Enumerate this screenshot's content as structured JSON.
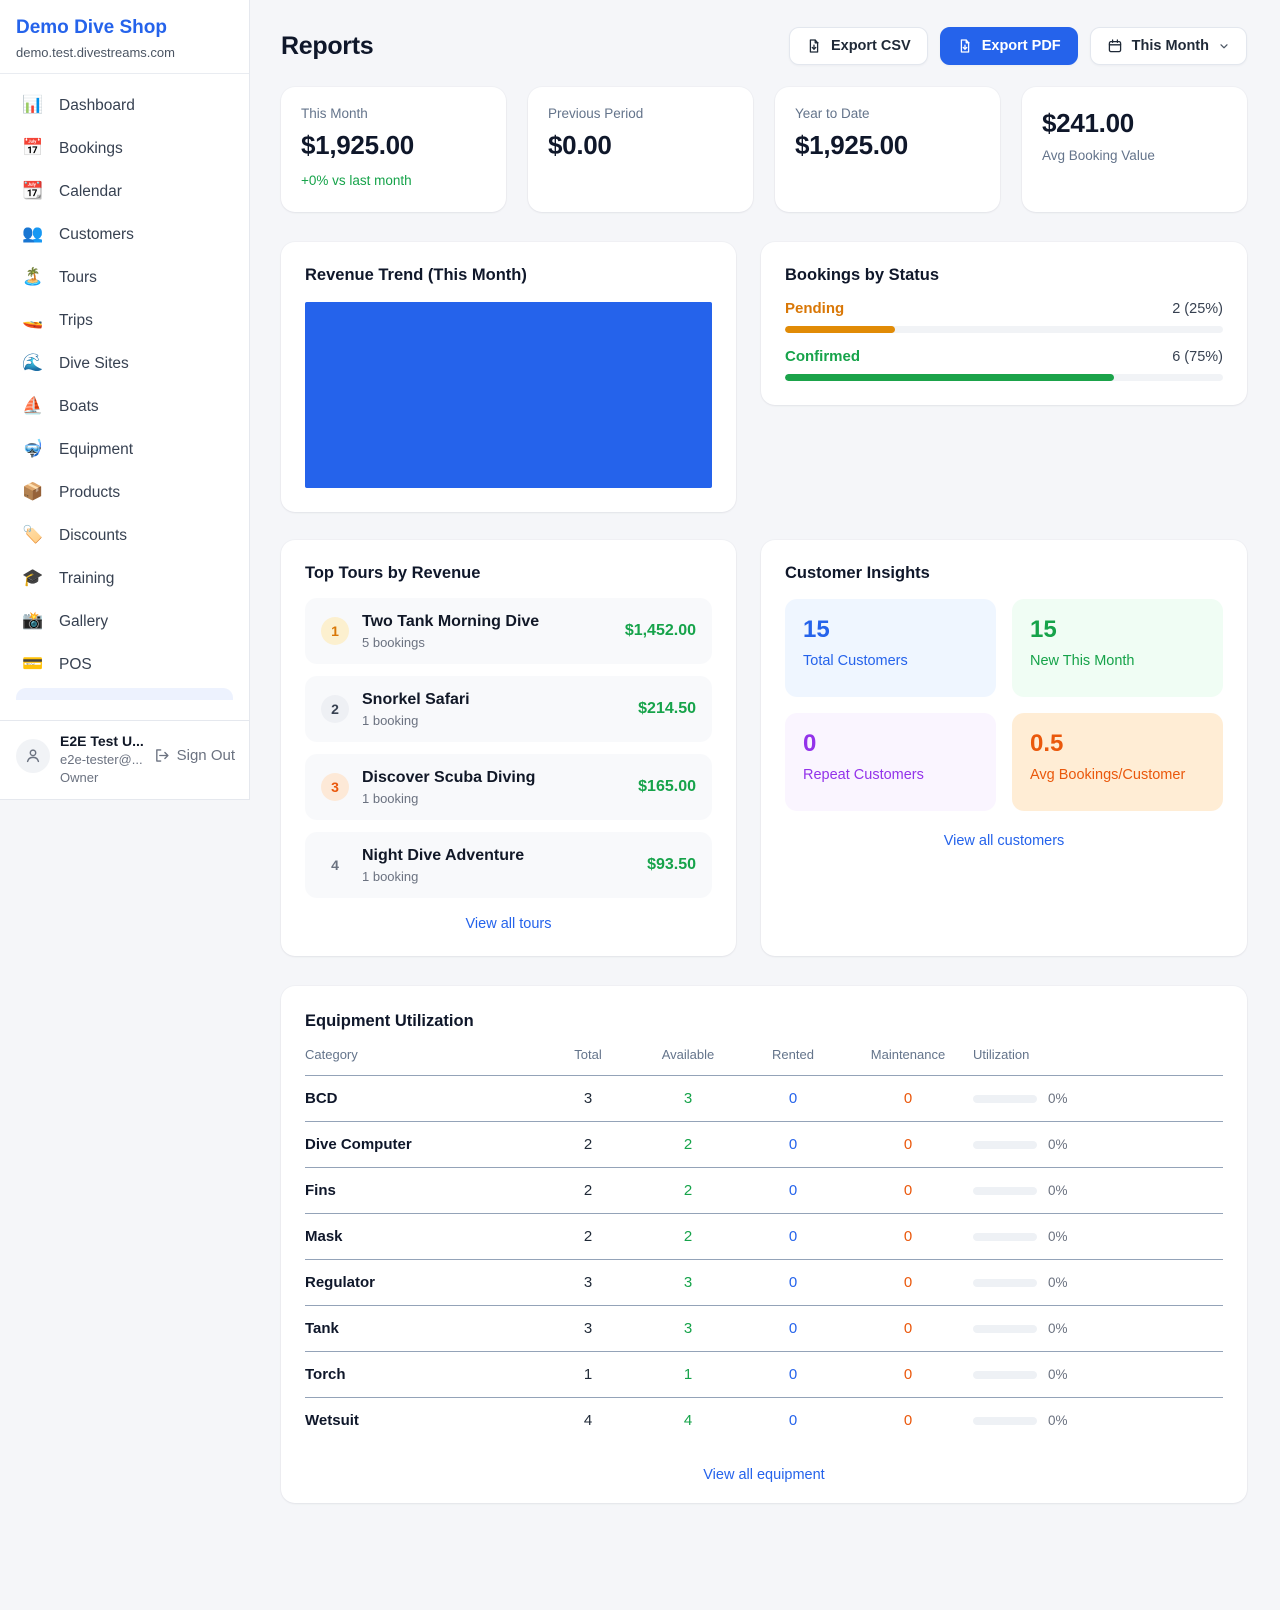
{
  "sidebar": {
    "brand": {
      "name": "Demo Dive Shop",
      "domain": "demo.test.divestreams.com"
    },
    "nav": [
      {
        "icon": "📊",
        "label": "Dashboard"
      },
      {
        "icon": "📅",
        "label": "Bookings"
      },
      {
        "icon": "📆",
        "label": "Calendar"
      },
      {
        "icon": "👥",
        "label": "Customers"
      },
      {
        "icon": "🏝️",
        "label": "Tours"
      },
      {
        "icon": "🚤",
        "label": "Trips"
      },
      {
        "icon": "🌊",
        "label": "Dive Sites"
      },
      {
        "icon": "⛵",
        "label": "Boats"
      },
      {
        "icon": "🤿",
        "label": "Equipment"
      },
      {
        "icon": "📦",
        "label": "Products"
      },
      {
        "icon": "🏷️",
        "label": "Discounts"
      },
      {
        "icon": "🎓",
        "label": "Training"
      },
      {
        "icon": "📸",
        "label": "Gallery"
      },
      {
        "icon": "💳",
        "label": "POS"
      }
    ],
    "user": {
      "name": "E2E Test U...",
      "email": "e2e-tester@...",
      "role": "Owner",
      "sign_out": "Sign Out"
    }
  },
  "header": {
    "title": "Reports",
    "export_csv": "Export CSV",
    "export_pdf": "Export PDF",
    "period": "This Month"
  },
  "stats": [
    {
      "label": "This Month",
      "value": "$1,925.00",
      "delta": "+0% vs last month"
    },
    {
      "label": "Previous Period",
      "value": "$0.00"
    },
    {
      "label": "Year to Date",
      "value": "$1,925.00"
    },
    {
      "label": "Avg Booking Value",
      "value": "$241.00"
    }
  ],
  "revenue_trend": {
    "title": "Revenue Trend (This Month)",
    "bar_color": "#2563eb"
  },
  "bookings_by_status": {
    "title": "Bookings by Status",
    "rows": [
      {
        "label": "Pending",
        "value": "2 (25%)",
        "pct": 25,
        "color": "#d97706"
      },
      {
        "label": "Confirmed",
        "value": "6 (75%)",
        "pct": 75,
        "color": "#16a34a"
      }
    ]
  },
  "top_tours": {
    "title": "Top Tours by Revenue",
    "items": [
      {
        "rank": "1",
        "name": "Two Tank Morning Dive",
        "bookings": "5 bookings",
        "revenue": "$1,452.00"
      },
      {
        "rank": "2",
        "name": "Snorkel Safari",
        "bookings": "1 booking",
        "revenue": "$214.50"
      },
      {
        "rank": "3",
        "name": "Discover Scuba Diving",
        "bookings": "1 booking",
        "revenue": "$165.00"
      },
      {
        "rank": "4",
        "name": "Night Dive Adventure",
        "bookings": "1 booking",
        "revenue": "$93.50"
      }
    ],
    "view_all": "View all tours"
  },
  "customer_insights": {
    "title": "Customer Insights",
    "tiles": [
      {
        "value": "15",
        "label": "Total Customers",
        "theme": "blue"
      },
      {
        "value": "15",
        "label": "New This Month",
        "theme": "green"
      },
      {
        "value": "0",
        "label": "Repeat Customers",
        "theme": "purple"
      },
      {
        "value": "0.5",
        "label": "Avg Bookings/Customer",
        "theme": "orange"
      }
    ],
    "view_all": "View all customers"
  },
  "equipment": {
    "title": "Equipment Utilization",
    "columns": [
      "Category",
      "Total",
      "Available",
      "Rented",
      "Maintenance",
      "Utilization"
    ],
    "rows": [
      {
        "category": "BCD",
        "total": "3",
        "available": "3",
        "rented": "0",
        "maintenance": "0",
        "utilization_pct": 0,
        "utilization": "0%"
      },
      {
        "category": "Dive Computer",
        "total": "2",
        "available": "2",
        "rented": "0",
        "maintenance": "0",
        "utilization_pct": 0,
        "utilization": "0%"
      },
      {
        "category": "Fins",
        "total": "2",
        "available": "2",
        "rented": "0",
        "maintenance": "0",
        "utilization_pct": 0,
        "utilization": "0%"
      },
      {
        "category": "Mask",
        "total": "2",
        "available": "2",
        "rented": "0",
        "maintenance": "0",
        "utilization_pct": 0,
        "utilization": "0%"
      },
      {
        "category": "Regulator",
        "total": "3",
        "available": "3",
        "rented": "0",
        "maintenance": "0",
        "utilization_pct": 0,
        "utilization": "0%"
      },
      {
        "category": "Tank",
        "total": "3",
        "available": "3",
        "rented": "0",
        "maintenance": "0",
        "utilization_pct": 0,
        "utilization": "0%"
      },
      {
        "category": "Torch",
        "total": "1",
        "available": "1",
        "rented": "0",
        "maintenance": "0",
        "utilization_pct": 0,
        "utilization": "0%"
      },
      {
        "category": "Wetsuit",
        "total": "4",
        "available": "4",
        "rented": "0",
        "maintenance": "0",
        "utilization_pct": 0,
        "utilization": "0%"
      }
    ],
    "view_all": "View all equipment"
  },
  "colors": {
    "accent_blue": "#2563eb",
    "money_green": "#16a34a",
    "pending_orange": "#d97706",
    "maintenance_orange": "#ea580c",
    "purple": "#9333ea"
  }
}
